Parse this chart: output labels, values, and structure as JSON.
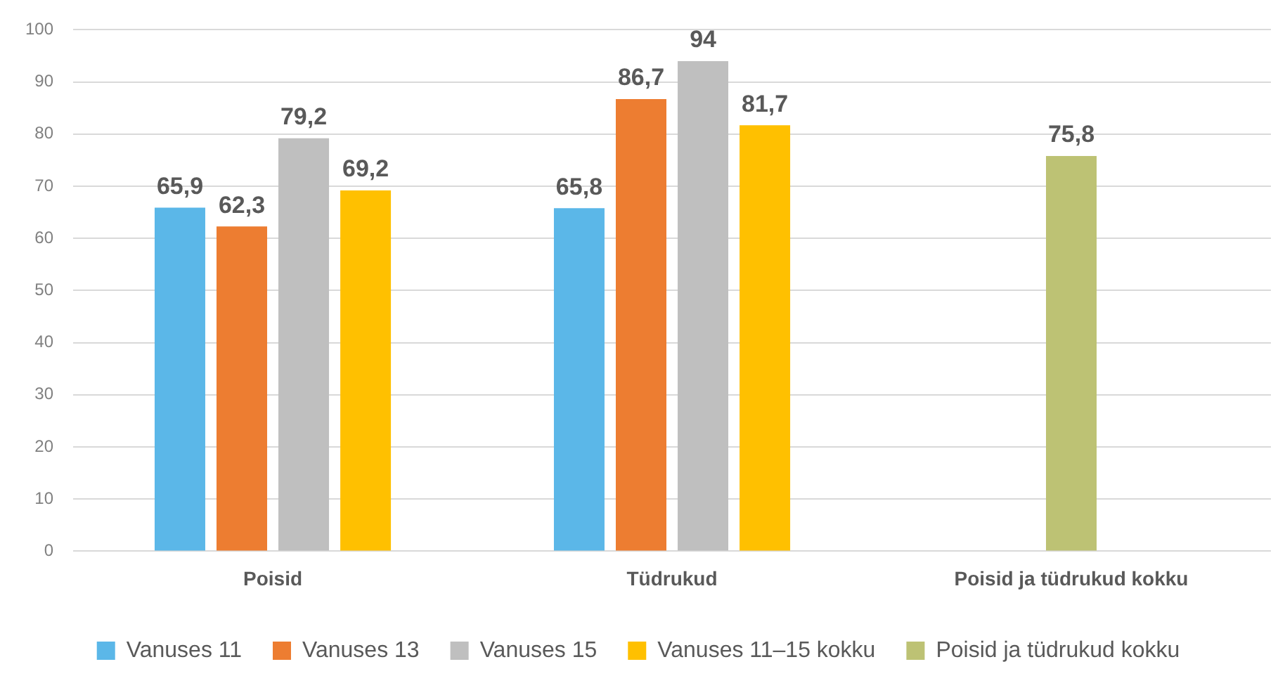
{
  "chart_data": {
    "type": "bar",
    "categories": [
      "Poisid",
      "Tüdrukud",
      "Poisid ja tüdrukud kokku"
    ],
    "series": [
      {
        "name": "Vanuses 11",
        "color": "#5bb7e8",
        "values": [
          65.9,
          65.8,
          null
        ],
        "value_labels": [
          "65,9",
          "65,8",
          null
        ]
      },
      {
        "name": "Vanuses 13",
        "color": "#ed7d31",
        "values": [
          62.3,
          86.7,
          null
        ],
        "value_labels": [
          "62,3",
          "86,7",
          null
        ]
      },
      {
        "name": "Vanuses 15",
        "color": "#bfbfbf",
        "values": [
          79.2,
          94,
          null
        ],
        "value_labels": [
          "79,2",
          "94",
          null
        ]
      },
      {
        "name": "Vanuses 11–15 kokku",
        "color": "#ffc000",
        "values": [
          69.2,
          81.7,
          null
        ],
        "value_labels": [
          "69,2",
          "81,7",
          null
        ]
      },
      {
        "name": "Poisid ja tüdrukud kokku",
        "color": "#bdc274",
        "values": [
          null,
          null,
          75.8
        ],
        "value_labels": [
          null,
          null,
          "75,8"
        ]
      }
    ],
    "ylim": [
      0,
      100
    ],
    "yticks": [
      0,
      10,
      20,
      30,
      40,
      50,
      60,
      70,
      80,
      90,
      100
    ],
    "grid": "y",
    "legend": "bottom"
  }
}
